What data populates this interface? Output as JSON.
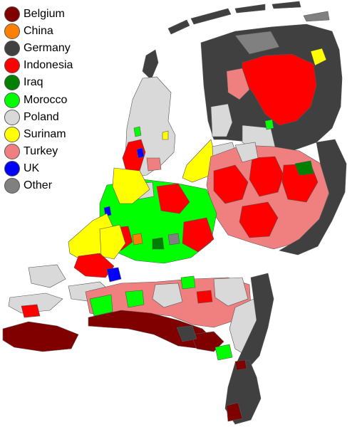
{
  "legend": {
    "items": [
      {
        "label": "Belgium",
        "color": "#800000"
      },
      {
        "label": "China",
        "color": "#ff8000"
      },
      {
        "label": "Germany",
        "color": "#404040"
      },
      {
        "label": "Indonesia",
        "color": "#ff0000"
      },
      {
        "label": "Iraq",
        "color": "#008000"
      },
      {
        "label": "Morocco",
        "color": "#00ff00"
      },
      {
        "label": "Poland",
        "color": "#d9d9d9"
      },
      {
        "label": "Surinam",
        "color": "#ffff00"
      },
      {
        "label": "Turkey",
        "color": "#f08080"
      },
      {
        "label": "UK",
        "color": "#0000ff"
      },
      {
        "label": "Other",
        "color": "#808080"
      }
    ]
  },
  "map": {
    "region": "Netherlands",
    "water_color": "#ffffff",
    "border_color": "#555555"
  }
}
